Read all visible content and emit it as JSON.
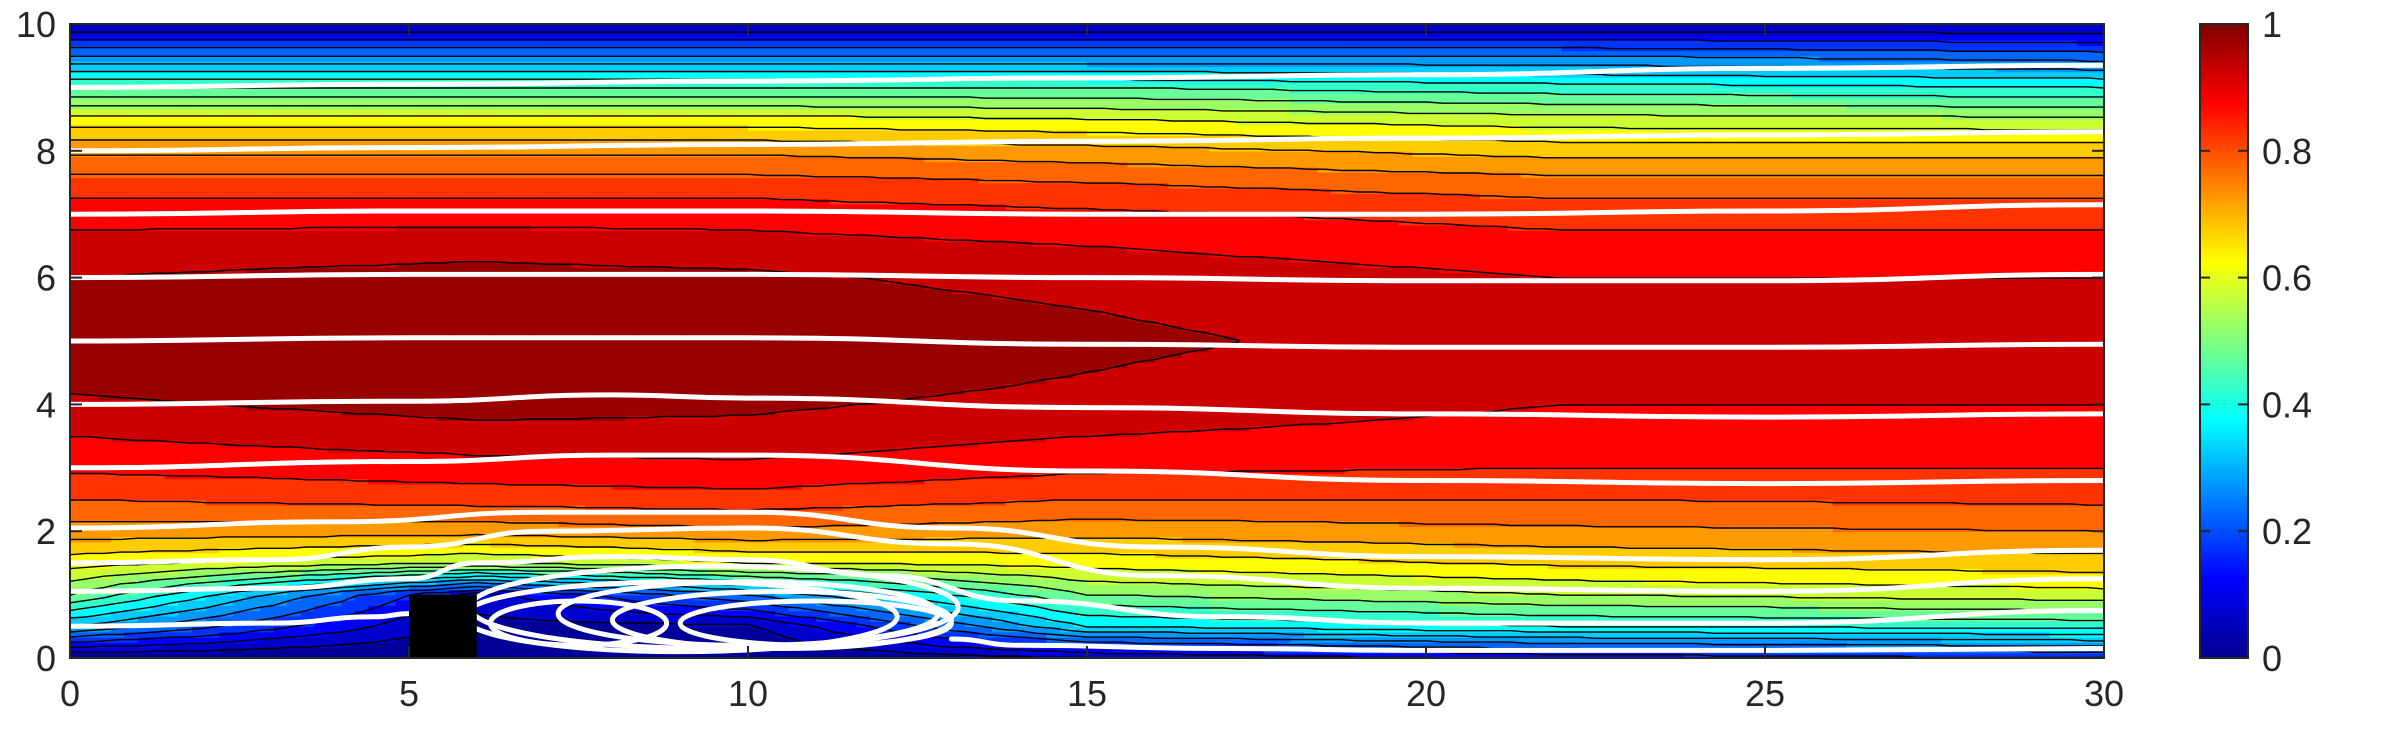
{
  "chart_data": {
    "type": "heatmap",
    "subtype": "filled contour plot with overlaid streamlines",
    "title": "",
    "xlabel": "",
    "ylabel": "",
    "xlim": [
      0,
      30
    ],
    "ylim": [
      0,
      10
    ],
    "x_ticks": [
      0,
      5,
      10,
      15,
      20,
      25,
      30
    ],
    "y_ticks": [
      0,
      2,
      4,
      6,
      8,
      10
    ],
    "grid": false,
    "colormap": "jet",
    "colorbar": {
      "location": "right",
      "range": [
        0,
        1
      ],
      "ticks": [
        0,
        0.2,
        0.4,
        0.6,
        0.8,
        1
      ],
      "tick_labels": [
        "0",
        "0.2",
        "0.4",
        "0.6",
        "0.8",
        "1"
      ]
    },
    "obstacle": {
      "x_range": [
        5,
        6
      ],
      "y_range": [
        0,
        1
      ],
      "color": "#000000"
    },
    "contour_line_color": "#000000",
    "streamline_color": "#ffffff",
    "field_profiles": [
      {
        "x": 0,
        "y": [
          0,
          0.5,
          1,
          1.5,
          2,
          2.5,
          3,
          3.5,
          4,
          4.5,
          5,
          5.5,
          6,
          6.5,
          7,
          7.5,
          8,
          8.5,
          9,
          9.5,
          10
        ],
        "value": [
          0.0,
          0.3,
          0.5,
          0.62,
          0.73,
          0.8,
          0.86,
          0.9,
          0.94,
          0.97,
          0.98,
          0.97,
          0.95,
          0.92,
          0.88,
          0.82,
          0.74,
          0.62,
          0.45,
          0.25,
          0.05
        ]
      },
      {
        "x": 6,
        "y": [
          0,
          0.5,
          1,
          1.5,
          2,
          2.5,
          3,
          3.5,
          4,
          4.5,
          5,
          5.5,
          6,
          6.5,
          7,
          7.5,
          8,
          8.5,
          9,
          9.5,
          10
        ],
        "value": [
          0.0,
          0.03,
          0.08,
          0.55,
          0.72,
          0.82,
          0.88,
          0.93,
          0.97,
          1.0,
          1.0,
          1.0,
          0.97,
          0.93,
          0.88,
          0.82,
          0.74,
          0.62,
          0.45,
          0.25,
          0.05
        ]
      },
      {
        "x": 10,
        "y": [
          0,
          0.5,
          1,
          1.5,
          2,
          2.5,
          3,
          3.5,
          4,
          4.5,
          5,
          5.5,
          6,
          6.5,
          7,
          7.5,
          8,
          8.5,
          9,
          9.5,
          10
        ],
        "value": [
          0.0,
          0.04,
          0.25,
          0.6,
          0.74,
          0.83,
          0.89,
          0.93,
          0.96,
          0.99,
          0.99,
          0.98,
          0.96,
          0.92,
          0.88,
          0.82,
          0.74,
          0.62,
          0.45,
          0.25,
          0.05
        ]
      },
      {
        "x": 15,
        "y": [
          0,
          0.5,
          1,
          1.5,
          2,
          2.5,
          3,
          3.5,
          4,
          4.5,
          5,
          5.5,
          6,
          6.5,
          7,
          7.5,
          8,
          8.5,
          9,
          9.5,
          10
        ],
        "value": [
          0.05,
          0.35,
          0.5,
          0.62,
          0.72,
          0.8,
          0.86,
          0.9,
          0.93,
          0.95,
          0.96,
          0.95,
          0.93,
          0.9,
          0.86,
          0.8,
          0.72,
          0.6,
          0.45,
          0.25,
          0.05
        ]
      },
      {
        "x": 22,
        "y": [
          0,
          0.5,
          1,
          1.5,
          2,
          2.5,
          3,
          3.5,
          4,
          4.5,
          5,
          5.5,
          6,
          6.5,
          7,
          7.5,
          8,
          8.5,
          9,
          9.5,
          10
        ],
        "value": [
          0.12,
          0.4,
          0.55,
          0.66,
          0.74,
          0.8,
          0.85,
          0.88,
          0.9,
          0.92,
          0.93,
          0.92,
          0.9,
          0.87,
          0.83,
          0.77,
          0.68,
          0.57,
          0.42,
          0.25,
          0.05
        ]
      },
      {
        "x": 30,
        "y": [
          0,
          0.5,
          1,
          1.5,
          2,
          2.5,
          3,
          3.5,
          4,
          4.5,
          5,
          5.5,
          6,
          6.5,
          7,
          7.5,
          8,
          8.5,
          9,
          9.5,
          10
        ],
        "value": [
          0.15,
          0.42,
          0.58,
          0.68,
          0.75,
          0.81,
          0.85,
          0.88,
          0.9,
          0.92,
          0.92,
          0.92,
          0.9,
          0.87,
          0.83,
          0.77,
          0.68,
          0.56,
          0.4,
          0.22,
          0.05
        ]
      }
    ],
    "streamlines": [
      {
        "x": [
          0,
          5,
          10,
          15,
          20,
          25,
          30
        ],
        "y": [
          9.0,
          9.05,
          9.1,
          9.15,
          9.2,
          9.3,
          9.35
        ]
      },
      {
        "x": [
          0,
          5,
          10,
          15,
          20,
          25,
          30
        ],
        "y": [
          8.0,
          8.05,
          8.1,
          8.15,
          8.2,
          8.25,
          8.3
        ]
      },
      {
        "x": [
          0,
          5,
          10,
          15,
          20,
          25,
          30
        ],
        "y": [
          7.0,
          7.05,
          7.05,
          7.0,
          7.0,
          7.05,
          7.15
        ]
      },
      {
        "x": [
          0,
          5,
          10,
          15,
          20,
          25,
          30
        ],
        "y": [
          6.0,
          6.05,
          6.05,
          6.0,
          5.95,
          5.95,
          6.05
        ]
      },
      {
        "x": [
          0,
          5,
          10,
          15,
          20,
          25,
          30
        ],
        "y": [
          5.0,
          5.05,
          5.05,
          4.95,
          4.9,
          4.9,
          4.95
        ]
      },
      {
        "x": [
          0,
          5,
          8,
          10,
          15,
          20,
          25,
          30
        ],
        "y": [
          4.0,
          4.05,
          4.15,
          4.1,
          3.95,
          3.85,
          3.8,
          3.85
        ]
      },
      {
        "x": [
          0,
          5,
          8,
          10,
          15,
          20,
          25,
          30
        ],
        "y": [
          3.0,
          3.1,
          3.2,
          3.2,
          2.95,
          2.8,
          2.75,
          2.8
        ]
      },
      {
        "x": [
          0,
          4,
          7,
          10,
          13,
          16,
          20,
          25,
          30
        ],
        "y": [
          2.05,
          2.15,
          2.3,
          2.3,
          2.05,
          1.75,
          1.6,
          1.55,
          1.7
        ]
      },
      {
        "x": [
          0,
          3,
          5,
          7,
          10,
          13,
          16,
          20,
          25,
          30
        ],
        "y": [
          1.5,
          1.55,
          1.75,
          2.0,
          2.05,
          1.8,
          1.3,
          1.1,
          1.05,
          1.25
        ]
      },
      {
        "x": [
          0,
          3,
          5,
          6,
          8,
          10,
          12,
          14,
          17,
          20,
          25,
          30
        ],
        "y": [
          1.05,
          1.1,
          1.25,
          1.5,
          1.6,
          1.55,
          1.3,
          0.9,
          0.65,
          0.55,
          0.55,
          0.75
        ]
      },
      {
        "x": [
          0,
          3,
          4.5,
          5
        ],
        "y": [
          0.5,
          0.55,
          0.65,
          0.7
        ]
      },
      {
        "x": [
          13,
          14,
          17,
          20,
          25,
          30
        ],
        "y": [
          0.3,
          0.2,
          0.15,
          0.12,
          0.12,
          0.15
        ]
      }
    ],
    "recirculation_loops": [
      {
        "center_x": 7.5,
        "center_y": 0.55,
        "half_width": 1.3,
        "half_height": 0.35
      },
      {
        "center_x": 9.0,
        "center_y": 0.65,
        "half_width": 3.2,
        "half_height": 0.55
      },
      {
        "center_x": 10.0,
        "center_y": 0.7,
        "half_width": 2.8,
        "half_height": 0.5
      },
      {
        "center_x": 10.5,
        "center_y": 0.6,
        "half_width": 2.5,
        "half_height": 0.45
      },
      {
        "center_x": 11.0,
        "center_y": 0.55,
        "half_width": 2.0,
        "half_height": 0.35
      },
      {
        "center_x": 9.5,
        "center_y": 0.8,
        "half_width": 3.6,
        "half_height": 0.65
      }
    ]
  }
}
